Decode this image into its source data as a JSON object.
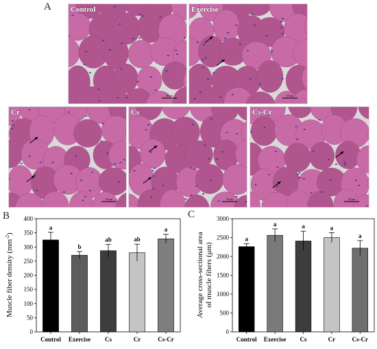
{
  "figure": {
    "panel_a_letter": "A",
    "panel_b_letter": "B",
    "panel_c_letter": "C",
    "micrographs": [
      {
        "label": "Control",
        "scale_text": "50 μm"
      },
      {
        "label": "Exercise",
        "scale_text": "50 μm"
      },
      {
        "label": "Cr",
        "scale_text": "50 μm"
      },
      {
        "label": "Cs",
        "scale_text": "50 μm"
      },
      {
        "label": "Cs-Cr",
        "scale_text": "50 μm"
      }
    ]
  },
  "colors": {
    "tissue": "#c86aa6",
    "tissue_dark": "#b0558e",
    "background_gap": "#d9d9d9",
    "nuclei": "#3a3a8a"
  },
  "chart_data": [
    {
      "type": "bar",
      "categories": [
        "Control",
        "Exercise",
        "Cs",
        "Cr",
        "Cs-Cr"
      ],
      "values": [
        325,
        271,
        287,
        280,
        329
      ],
      "errors": [
        27,
        13,
        22,
        30,
        16
      ],
      "sig_labels": [
        "a",
        "b",
        "ab",
        "ab",
        "a"
      ],
      "colors": [
        "#000000",
        "#5c5c5c",
        "#3d3d3d",
        "#c4c4c4",
        "#7f7f7f"
      ],
      "ylabel_prefix": "Muscle fiber density (mm",
      "ylabel_superscript": "-2",
      "ylabel_suffix": ")",
      "ylim": [
        0,
        400
      ],
      "yticks": [
        "0",
        "50",
        "100",
        "150",
        "200",
        "250",
        "300",
        "350",
        "400"
      ]
    },
    {
      "type": "bar",
      "categories": [
        "Control",
        "Exercise",
        "Cs",
        "Cr",
        "Cs-Cr"
      ],
      "values": [
        2260,
        2560,
        2410,
        2500,
        2220
      ],
      "errors": [
        80,
        170,
        260,
        130,
        200
      ],
      "sig_labels": [
        "a",
        "a",
        "a",
        "a",
        "a"
      ],
      "colors": [
        "#000000",
        "#7a7a7a",
        "#3d3d3d",
        "#c4c4c4",
        "#6e6e6e"
      ],
      "ylabel_line1": "Average cross-sectional area",
      "ylabel_line2": "of muscle fibers (μm)",
      "ylim": [
        0,
        3000
      ],
      "yticks": [
        "0",
        "500",
        "1000",
        "1500",
        "2000",
        "2500",
        "3000"
      ]
    }
  ]
}
